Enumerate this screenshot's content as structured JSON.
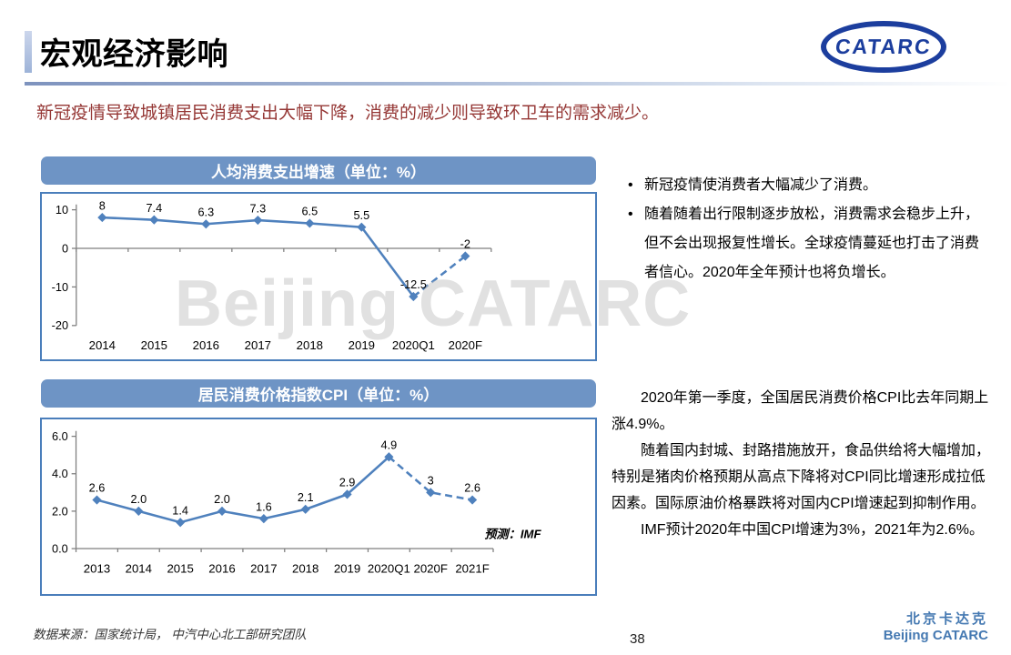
{
  "slide": {
    "title": "宏观经济影响",
    "subtitle": "新冠疫情导致城镇居民消费支出大幅下降，消费的减少则导致环卫车的需求减少。",
    "logo_text": "CATARC",
    "watermark": "Beijing CATARC",
    "source_note": "数据来源：国家统计局， 中汽中心北工部研究团队",
    "page_number": "38",
    "footer_logo_cn": "北京卡达克",
    "footer_logo_en": "Beijing CATARC"
  },
  "right_panel": {
    "bullets": [
      "新冠疫情使消费者大幅减少了消费。",
      "随着随着出行限制逐步放松，消费需求会稳步上升，但不会出现报复性增长。全球疫情蔓延也打击了消费者信心。2020年全年预计也将负增长。"
    ],
    "paragraphs": [
      "2020年第一季度，全国居民消费价格CPI比去年同期上涨4.9%。",
      "随着国内封城、封路措施放开，食品供给将大幅增加，特别是猪肉价格预期从高点下降将对CPI同比增速形成拉低因素。国际原油价格暴跌将对国内CPI增速起到抑制作用。",
      "IMF预计2020年中国CPI增速为3%，2021年为2.6%。"
    ]
  },
  "chart_data": [
    {
      "type": "line",
      "title": "人均消费支出增速（单位：%）",
      "categories": [
        "2014",
        "2015",
        "2016",
        "2017",
        "2018",
        "2019",
        "2020Q1",
        "2020F"
      ],
      "values": [
        8,
        7.4,
        6.3,
        7.3,
        6.5,
        5.5,
        -12.5,
        -2
      ],
      "labels": [
        "8",
        "7.4",
        "6.3",
        "7.3",
        "6.5",
        "5.5",
        "-12.5",
        "-2"
      ],
      "y_ticks": [
        10,
        0,
        -10,
        -20
      ],
      "y_tick_labels": [
        "10",
        "0",
        "-10",
        "-20"
      ],
      "ylim": [
        -20,
        10
      ],
      "dashed_from_index": 6,
      "xlabel": "",
      "ylabel": "",
      "grid": false,
      "legend": "none",
      "annotation": ""
    },
    {
      "type": "line",
      "title": "居民消费价格指数CPI（单位：%）",
      "categories": [
        "2013",
        "2014",
        "2015",
        "2016",
        "2017",
        "2018",
        "2019",
        "2020Q1",
        "2020F",
        "2021F"
      ],
      "values": [
        2.6,
        2.0,
        1.4,
        2.0,
        1.6,
        2.1,
        2.9,
        4.9,
        3,
        2.6
      ],
      "labels": [
        "2.6",
        "2.0",
        "1.4",
        "2.0",
        "1.6",
        "2.1",
        "2.9",
        "4.9",
        "3",
        "2.6"
      ],
      "y_ticks": [
        6.0,
        4.0,
        2.0,
        0.0
      ],
      "y_tick_labels": [
        "6.0",
        "4.0",
        "2.0",
        "0.0"
      ],
      "ylim": [
        0,
        6
      ],
      "dashed_from_index": 7,
      "xlabel": "",
      "ylabel": "",
      "grid": false,
      "legend": "none",
      "annotation": "预测：IMF"
    }
  ],
  "colors": {
    "banner_blue": "#6E94C5",
    "chart_border_blue": "#4A7EBB",
    "line_blue": "#4F81BD",
    "subtitle_red": "#953735",
    "logo_blue": "#1C3E9E",
    "footer_blue": "#4579B2",
    "watermark_gray": "#C9C9C9",
    "axis_gray": "#7F7F7F"
  }
}
